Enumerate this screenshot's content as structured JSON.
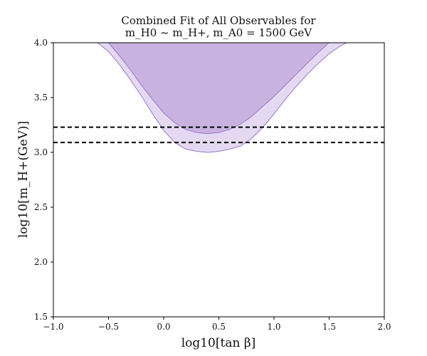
{
  "chart_data": {
    "type": "area",
    "title": [
      "Combined Fit of All Observables for",
      "m_H0 ~ m_H+, m_A0 = 1500 GeV"
    ],
    "xlabel": "log10[tan β]",
    "ylabel": "log10[m_H+(GeV)]",
    "xlim": [
      -1.0,
      2.0
    ],
    "ylim": [
      1.5,
      4.0
    ],
    "xticks": [
      "−1.0",
      "−0.5",
      "0.0",
      "0.5",
      "1.0",
      "1.5",
      "2.0"
    ],
    "yticks": [
      "1.5",
      "2.0",
      "2.5",
      "3.0",
      "3.5",
      "4.0"
    ],
    "grid": false,
    "series": [
      {
        "region": "outer",
        "color": "#e4d9f1",
        "edge": "#9b77cc",
        "x": [
          -0.6,
          -0.5,
          -0.4,
          -0.3,
          -0.2,
          -0.1,
          0.0,
          0.1,
          0.2,
          0.3,
          0.4,
          0.5,
          0.6,
          0.7,
          0.8,
          0.9,
          1.0,
          1.1,
          1.2,
          1.3,
          1.4,
          1.5,
          1.6,
          1.66
        ],
        "y": [
          4.0,
          3.92,
          3.8,
          3.66,
          3.51,
          3.35,
          3.2,
          3.09,
          3.03,
          3.01,
          3.0,
          3.01,
          3.03,
          3.06,
          3.13,
          3.23,
          3.35,
          3.48,
          3.6,
          3.71,
          3.81,
          3.9,
          3.97,
          4.0
        ]
      },
      {
        "region": "inner",
        "color": "#c8b2df",
        "edge": "#9b77cc",
        "x": [
          -0.5,
          -0.4,
          -0.3,
          -0.2,
          -0.1,
          0.0,
          0.1,
          0.2,
          0.3,
          0.4,
          0.5,
          0.6,
          0.7,
          0.8,
          0.9,
          1.0,
          1.1,
          1.2,
          1.3,
          1.4,
          1.5
        ],
        "y": [
          4.0,
          3.88,
          3.75,
          3.61,
          3.48,
          3.36,
          3.27,
          3.21,
          3.18,
          3.17,
          3.18,
          3.21,
          3.26,
          3.33,
          3.42,
          3.51,
          3.61,
          3.71,
          3.81,
          3.91,
          4.0
        ]
      }
    ],
    "hlines": [
      {
        "y": 3.23,
        "style": "dashed",
        "color": "#000000"
      },
      {
        "y": 3.09,
        "style": "dashed",
        "color": "#000000"
      }
    ]
  }
}
